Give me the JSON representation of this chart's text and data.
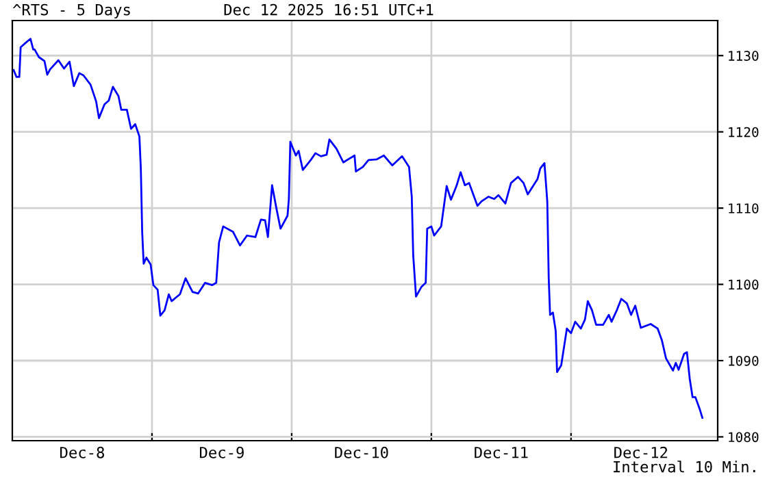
{
  "chart_data": {
    "type": "line",
    "title": "^RTS - 5 Days",
    "subtitle": "Dec 12 2025 16:51 UTC+1",
    "annotations": [
      "Interval 10 Min."
    ],
    "xlim": [
      "2025-12-08T00:00",
      "2025-12-13T01:12"
    ],
    "ylim": [
      1079.5,
      1134.6
    ],
    "xticks": [
      {
        "value": "2025-12-09",
        "label": null
      },
      {
        "value": "2025-12-10",
        "label": null
      },
      {
        "value": "2025-12-11",
        "label": null
      },
      {
        "value": "2025-12-12",
        "label": null
      },
      {
        "value": "2025-12-08T12:00",
        "label": "Dec-8"
      },
      {
        "value": "2025-12-09T12:00",
        "label": "Dec-9"
      },
      {
        "value": "2025-12-10T12:00",
        "label": "Dec-10"
      },
      {
        "value": "2025-12-11T12:00",
        "label": "Dec-11"
      },
      {
        "value": "2025-12-12T12:00",
        "label": "Dec-12"
      }
    ],
    "yticks": [
      1080,
      1090,
      1100,
      1110,
      1120,
      1130
    ],
    "grid": true,
    "marker": "none",
    "line_style": "solid",
    "series": [
      {
        "color": "#0000ff",
        "x": [
          "2025-12-08T00:14",
          "2025-12-08T00:43",
          "2025-12-08T01:12",
          "2025-12-08T01:26",
          "2025-12-08T02:10",
          "2025-12-08T03:07",
          "2025-12-08T03:36",
          "2025-12-08T03:50",
          "2025-12-08T04:34",
          "2025-12-08T05:31",
          "2025-12-08T06:00",
          "2025-12-08T06:29",
          "2025-12-08T07:55",
          "2025-12-08T08:53",
          "2025-12-08T09:50",
          "2025-12-08T10:34",
          "2025-12-08T11:31",
          "2025-12-08T12:14",
          "2025-12-08T13:26",
          "2025-12-08T14:24",
          "2025-12-08T14:53",
          "2025-12-08T15:50",
          "2025-12-08T16:34",
          "2025-12-08T17:17",
          "2025-12-08T18:14",
          "2025-12-08T18:43",
          "2025-12-08T19:41",
          "2025-12-08T20:24",
          "2025-12-08T21:07",
          "2025-12-08T21:50",
          "2025-12-08T22:05",
          "2025-12-08T22:19",
          "2025-12-08T22:34",
          "2025-12-08T23:02",
          "2025-12-08T23:46",
          "2025-12-09T00:14",
          "2025-12-09T00:58",
          "2025-12-09T01:26",
          "2025-12-09T02:10",
          "2025-12-09T02:53",
          "2025-12-09T03:22",
          "2025-12-09T04:48",
          "2025-12-09T05:46",
          "2025-12-09T06:58",
          "2025-12-09T07:55",
          "2025-12-09T09:07",
          "2025-12-09T10:19",
          "2025-12-09T11:02",
          "2025-12-09T11:31",
          "2025-12-09T12:14",
          "2025-12-09T13:55",
          "2025-12-09T15:07",
          "2025-12-09T16:19",
          "2025-12-09T17:46",
          "2025-12-09T18:43",
          "2025-12-09T19:26",
          "2025-12-09T19:55",
          "2025-12-09T20:38",
          "2025-12-09T21:22",
          "2025-12-09T22:05",
          "2025-12-09T23:17",
          "2025-12-09T23:31",
          "2025-12-09T23:46",
          "2025-12-10T00:43",
          "2025-12-10T01:12",
          "2025-12-10T01:55",
          "2025-12-10T03:22",
          "2025-12-10T04:05",
          "2025-12-10T05:02",
          "2025-12-10T06:00",
          "2025-12-10T06:29",
          "2025-12-10T07:41",
          "2025-12-10T08:53",
          "2025-12-10T10:48",
          "2025-12-10T11:02",
          "2025-12-10T12:14",
          "2025-12-10T13:12",
          "2025-12-10T14:38",
          "2025-12-10T15:50",
          "2025-12-10T17:17",
          "2025-12-10T18:58",
          "2025-12-10T20:10",
          "2025-12-10T20:38",
          "2025-12-10T20:53",
          "2025-12-10T21:22",
          "2025-12-10T22:19",
          "2025-12-10T23:02",
          "2025-12-10T23:17",
          "2025-12-11T00:00",
          "2025-12-11T00:29",
          "2025-12-11T01:41",
          "2025-12-11T02:10",
          "2025-12-11T02:38",
          "2025-12-11T03:22",
          "2025-12-11T04:19",
          "2025-12-11T05:02",
          "2025-12-11T05:46",
          "2025-12-11T06:29",
          "2025-12-11T07:55",
          "2025-12-11T08:38",
          "2025-12-11T09:50",
          "2025-12-11T10:48",
          "2025-12-11T11:31",
          "2025-12-11T12:43",
          "2025-12-11T13:41",
          "2025-12-11T14:53",
          "2025-12-11T15:50",
          "2025-12-11T16:34",
          "2025-12-11T18:14",
          "2025-12-11T18:43",
          "2025-12-11T19:26",
          "2025-12-11T19:55",
          "2025-12-11T20:10",
          "2025-12-11T20:24",
          "2025-12-11T20:53",
          "2025-12-11T21:22",
          "2025-12-11T21:36",
          "2025-12-11T22:19",
          "2025-12-11T23:17",
          "2025-12-12T00:00",
          "2025-12-12T00:43",
          "2025-12-12T01:41",
          "2025-12-12T02:24",
          "2025-12-12T02:53",
          "2025-12-12T03:36",
          "2025-12-12T04:19",
          "2025-12-12T05:31",
          "2025-12-12T06:29",
          "2025-12-12T06:58",
          "2025-12-12T07:55",
          "2025-12-12T08:38",
          "2025-12-12T09:36",
          "2025-12-12T10:19",
          "2025-12-12T11:02",
          "2025-12-12T12:00",
          "2025-12-12T13:41",
          "2025-12-12T14:53",
          "2025-12-12T15:36",
          "2025-12-12T16:19",
          "2025-12-12T17:31",
          "2025-12-12T18:00",
          "2025-12-12T18:29",
          "2025-12-12T19:26",
          "2025-12-12T19:55",
          "2025-12-12T20:24",
          "2025-12-12T20:53",
          "2025-12-12T21:22",
          "2025-12-12T22:05",
          "2025-12-12T22:34"
        ],
        "values": [
          1128.1,
          1127.2,
          1127.2,
          1131.1,
          1131.6,
          1132.2,
          1130.8,
          1130.8,
          1129.8,
          1129.3,
          1127.5,
          1128.2,
          1129.4,
          1128.3,
          1129.2,
          1126.0,
          1127.7,
          1127.4,
          1126.2,
          1124.0,
          1121.8,
          1123.6,
          1124.1,
          1125.9,
          1124.7,
          1122.9,
          1122.9,
          1120.4,
          1121.0,
          1119.4,
          1115.1,
          1106.8,
          1102.7,
          1103.5,
          1102.6,
          1099.9,
          1099.3,
          1095.9,
          1096.6,
          1098.7,
          1097.8,
          1098.7,
          1100.8,
          1099.0,
          1098.8,
          1100.2,
          1099.9,
          1100.2,
          1105.5,
          1107.6,
          1106.9,
          1105.1,
          1106.4,
          1106.2,
          1108.5,
          1108.4,
          1106.2,
          1113.0,
          1110.0,
          1107.3,
          1109.0,
          1111.2,
          1118.7,
          1116.9,
          1117.5,
          1115.0,
          1116.4,
          1117.2,
          1116.8,
          1117.0,
          1119.0,
          1117.8,
          1116.0,
          1116.9,
          1114.8,
          1115.4,
          1116.3,
          1116.4,
          1116.9,
          1115.6,
          1116.8,
          1115.4,
          1111.5,
          1103.8,
          1098.4,
          1099.7,
          1100.2,
          1107.3,
          1107.6,
          1106.4,
          1107.6,
          1110.3,
          1112.9,
          1111.1,
          1112.9,
          1114.7,
          1113.0,
          1113.3,
          1110.3,
          1110.9,
          1111.5,
          1111.2,
          1111.7,
          1110.6,
          1113.3,
          1114.1,
          1113.3,
          1111.8,
          1113.8,
          1115.2,
          1115.9,
          1110.9,
          1100.8,
          1096.0,
          1096.3,
          1093.9,
          1088.5,
          1089.4,
          1094.2,
          1093.6,
          1095.1,
          1094.2,
          1095.4,
          1097.8,
          1096.6,
          1094.7,
          1094.7,
          1096.0,
          1095.1,
          1096.7,
          1098.1,
          1097.5,
          1096.0,
          1097.2,
          1094.3,
          1094.8,
          1094.2,
          1092.7,
          1090.3,
          1088.7,
          1089.7,
          1088.8,
          1090.9,
          1091.1,
          1087.6,
          1085.2,
          1085.2,
          1083.7,
          1082.5
        ]
      }
    ]
  }
}
